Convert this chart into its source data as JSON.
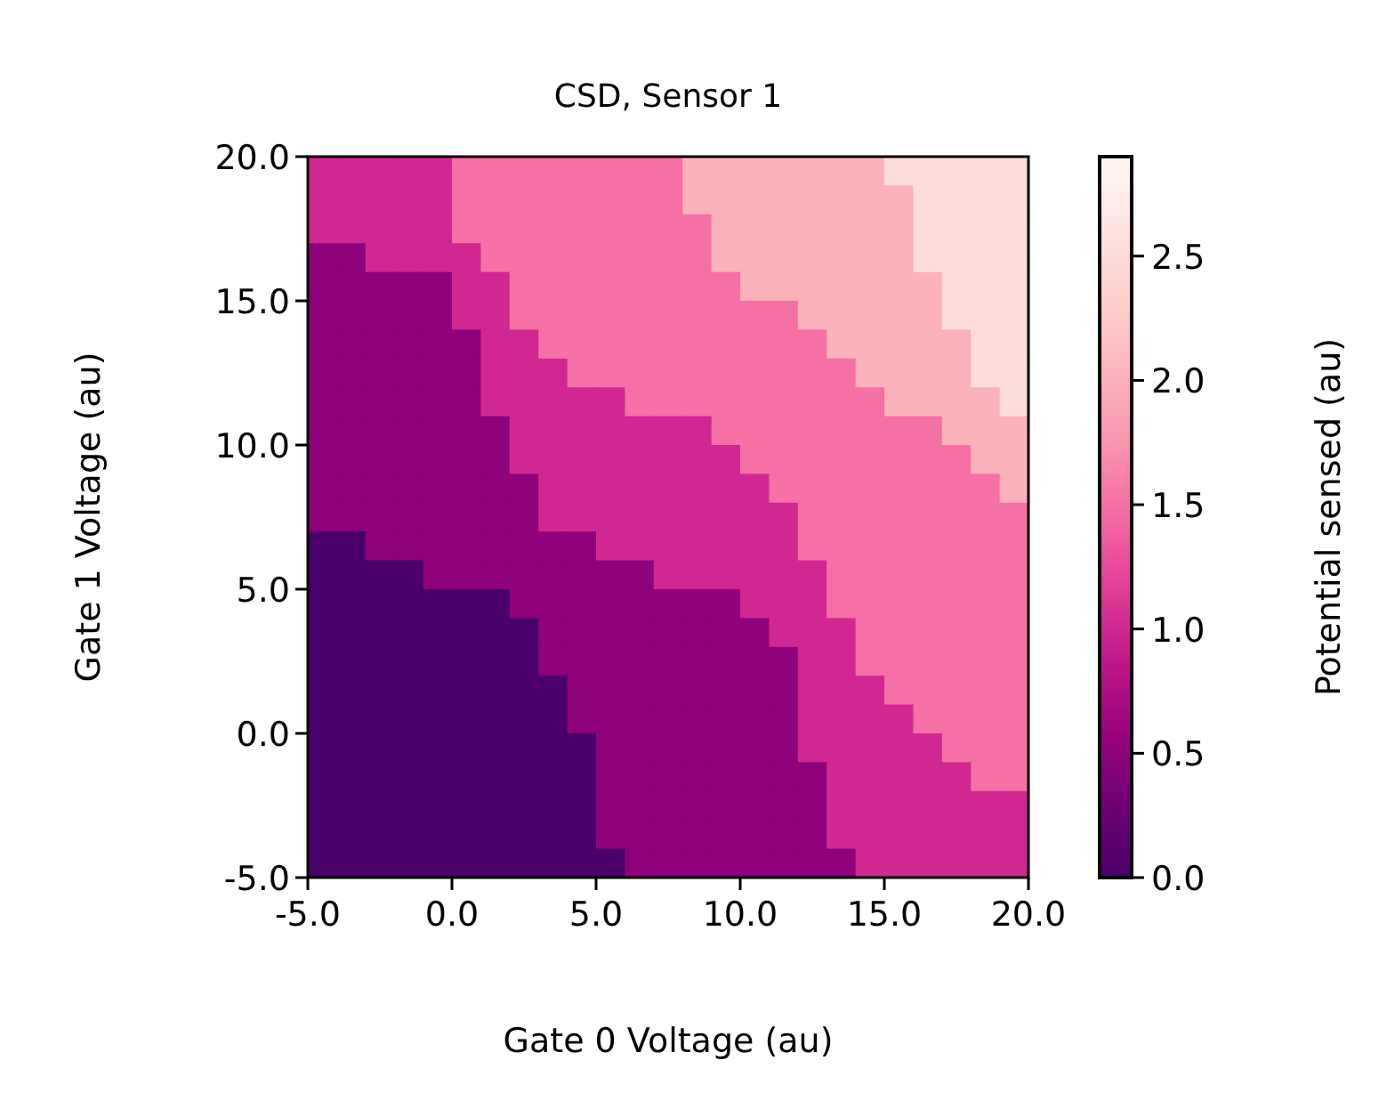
{
  "chart_data": {
    "type": "heatmap",
    "title": "CSD, Sensor 1",
    "xlabel": "Gate 0 Voltage (au)",
    "ylabel": "Gate 1 Voltage (au)",
    "clabel": "Potential sensed (au)",
    "xlim": [
      -5,
      20
    ],
    "ylim": [
      -5,
      20
    ],
    "xticks": [
      {
        "value": -5,
        "label": "-5.0"
      },
      {
        "value": 0,
        "label": "0.0"
      },
      {
        "value": 5,
        "label": "5.0"
      },
      {
        "value": 10,
        "label": "10.0"
      },
      {
        "value": 15,
        "label": "15.0"
      },
      {
        "value": 20,
        "label": "20.0"
      }
    ],
    "yticks": [
      {
        "value": -5,
        "label": "-5.0"
      },
      {
        "value": 0,
        "label": "0.0"
      },
      {
        "value": 5,
        "label": "5.0"
      },
      {
        "value": 10,
        "label": "10.0"
      },
      {
        "value": 15,
        "label": "15.0"
      },
      {
        "value": 20,
        "label": "20.0"
      }
    ],
    "clim": [
      0,
      2.9
    ],
    "cticks": [
      {
        "value": 0,
        "label": "0.0"
      },
      {
        "value": 0.5,
        "label": "0.5"
      },
      {
        "value": 1,
        "label": "1.0"
      },
      {
        "value": 1.5,
        "label": "1.5"
      },
      {
        "value": 2,
        "label": "2.0"
      },
      {
        "value": 2.5,
        "label": "2.5"
      }
    ],
    "cells": [
      [
        1,
        1,
        1,
        1,
        1,
        1.5,
        1.5,
        1.5,
        1.5,
        1.5,
        1.5,
        1.5,
        1.5,
        2,
        2,
        2,
        2,
        2,
        2,
        2,
        2.5,
        2.5,
        2.5,
        2.5,
        2.5
      ],
      [
        1,
        1,
        1,
        1,
        1,
        1.5,
        1.5,
        1.5,
        1.5,
        1.5,
        1.5,
        1.5,
        1.5,
        2,
        2,
        2,
        2,
        2,
        2,
        2,
        2,
        2.5,
        2.5,
        2.5,
        2.5
      ],
      [
        1,
        1,
        1,
        1,
        1,
        1.5,
        1.5,
        1.5,
        1.5,
        1.5,
        1.5,
        1.5,
        1.5,
        1.5,
        2,
        2,
        2,
        2,
        2,
        2,
        2,
        2.5,
        2.5,
        2.5,
        2.5
      ],
      [
        0.5,
        0.5,
        1,
        1,
        1,
        1,
        1.5,
        1.5,
        1.5,
        1.5,
        1.5,
        1.5,
        1.5,
        1.5,
        2,
        2,
        2,
        2,
        2,
        2,
        2,
        2.5,
        2.5,
        2.5,
        2.5
      ],
      [
        0.5,
        0.5,
        0.5,
        0.5,
        0.5,
        1,
        1,
        1.5,
        1.5,
        1.5,
        1.5,
        1.5,
        1.5,
        1.5,
        1.5,
        2,
        2,
        2,
        2,
        2,
        2,
        2,
        2.5,
        2.5,
        2.5
      ],
      [
        0.5,
        0.5,
        0.5,
        0.5,
        0.5,
        1,
        1,
        1.5,
        1.5,
        1.5,
        1.5,
        1.5,
        1.5,
        1.5,
        1.5,
        1.5,
        1.5,
        2,
        2,
        2,
        2,
        2,
        2.5,
        2.5,
        2.5
      ],
      [
        0.5,
        0.5,
        0.5,
        0.5,
        0.5,
        0.5,
        1,
        1,
        1.5,
        1.5,
        1.5,
        1.5,
        1.5,
        1.5,
        1.5,
        1.5,
        1.5,
        1.5,
        2,
        2,
        2,
        2,
        2,
        2.5,
        2.5
      ],
      [
        0.5,
        0.5,
        0.5,
        0.5,
        0.5,
        0.5,
        1,
        1,
        1,
        1.5,
        1.5,
        1.5,
        1.5,
        1.5,
        1.5,
        1.5,
        1.5,
        1.5,
        1.5,
        2,
        2,
        2,
        2,
        2.5,
        2.5
      ],
      [
        0.5,
        0.5,
        0.5,
        0.5,
        0.5,
        0.5,
        1,
        1,
        1,
        1,
        1,
        1.5,
        1.5,
        1.5,
        1.5,
        1.5,
        1.5,
        1.5,
        1.5,
        1.5,
        2,
        2,
        2,
        2,
        2.5
      ],
      [
        0.5,
        0.5,
        0.5,
        0.5,
        0.5,
        0.5,
        0.5,
        1,
        1,
        1,
        1,
        1,
        1,
        1,
        1.5,
        1.5,
        1.5,
        1.5,
        1.5,
        1.5,
        1.5,
        1.5,
        2,
        2,
        2
      ],
      [
        0.5,
        0.5,
        0.5,
        0.5,
        0.5,
        0.5,
        0.5,
        1,
        1,
        1,
        1,
        1,
        1,
        1,
        1,
        1.5,
        1.5,
        1.5,
        1.5,
        1.5,
        1.5,
        1.5,
        1.5,
        2,
        2
      ],
      [
        0.5,
        0.5,
        0.5,
        0.5,
        0.5,
        0.5,
        0.5,
        0.5,
        1,
        1,
        1,
        1,
        1,
        1,
        1,
        1,
        1.5,
        1.5,
        1.5,
        1.5,
        1.5,
        1.5,
        1.5,
        1.5,
        2
      ],
      [
        0.5,
        0.5,
        0.5,
        0.5,
        0.5,
        0.5,
        0.5,
        0.5,
        1,
        1,
        1,
        1,
        1,
        1,
        1,
        1,
        1,
        1.5,
        1.5,
        1.5,
        1.5,
        1.5,
        1.5,
        1.5,
        1.5
      ],
      [
        0,
        0,
        0.5,
        0.5,
        0.5,
        0.5,
        0.5,
        0.5,
        0.5,
        0.5,
        1,
        1,
        1,
        1,
        1,
        1,
        1,
        1.5,
        1.5,
        1.5,
        1.5,
        1.5,
        1.5,
        1.5,
        1.5
      ],
      [
        0,
        0,
        0,
        0,
        0.5,
        0.5,
        0.5,
        0.5,
        0.5,
        0.5,
        0.5,
        0.5,
        1,
        1,
        1,
        1,
        1,
        1,
        1.5,
        1.5,
        1.5,
        1.5,
        1.5,
        1.5,
        1.5
      ],
      [
        0,
        0,
        0,
        0,
        0,
        0,
        0,
        0.5,
        0.5,
        0.5,
        0.5,
        0.5,
        0.5,
        0.5,
        0.5,
        1,
        1,
        1,
        1.5,
        1.5,
        1.5,
        1.5,
        1.5,
        1.5,
        1.5
      ],
      [
        0,
        0,
        0,
        0,
        0,
        0,
        0,
        0,
        0.5,
        0.5,
        0.5,
        0.5,
        0.5,
        0.5,
        0.5,
        0.5,
        1,
        1,
        1,
        1.5,
        1.5,
        1.5,
        1.5,
        1.5,
        1.5
      ],
      [
        0,
        0,
        0,
        0,
        0,
        0,
        0,
        0,
        0.5,
        0.5,
        0.5,
        0.5,
        0.5,
        0.5,
        0.5,
        0.5,
        0.5,
        1,
        1,
        1.5,
        1.5,
        1.5,
        1.5,
        1.5,
        1.5
      ],
      [
        0,
        0,
        0,
        0,
        0,
        0,
        0,
        0,
        0,
        0.5,
        0.5,
        0.5,
        0.5,
        0.5,
        0.5,
        0.5,
        0.5,
        1,
        1,
        1,
        1.5,
        1.5,
        1.5,
        1.5,
        1.5
      ],
      [
        0,
        0,
        0,
        0,
        0,
        0,
        0,
        0,
        0,
        0.5,
        0.5,
        0.5,
        0.5,
        0.5,
        0.5,
        0.5,
        0.5,
        1,
        1,
        1,
        1,
        1.5,
        1.5,
        1.5,
        1.5
      ],
      [
        0,
        0,
        0,
        0,
        0,
        0,
        0,
        0,
        0,
        0,
        0.5,
        0.5,
        0.5,
        0.5,
        0.5,
        0.5,
        0.5,
        1,
        1,
        1,
        1,
        1,
        1.5,
        1.5,
        1.5
      ],
      [
        0,
        0,
        0,
        0,
        0,
        0,
        0,
        0,
        0,
        0,
        0.5,
        0.5,
        0.5,
        0.5,
        0.5,
        0.5,
        0.5,
        0.5,
        1,
        1,
        1,
        1,
        1,
        1.5,
        1.5
      ],
      [
        0,
        0,
        0,
        0,
        0,
        0,
        0,
        0,
        0,
        0,
        0.5,
        0.5,
        0.5,
        0.5,
        0.5,
        0.5,
        0.5,
        0.5,
        1,
        1,
        1,
        1,
        1,
        1,
        1
      ],
      [
        0,
        0,
        0,
        0,
        0,
        0,
        0,
        0,
        0,
        0,
        0.5,
        0.5,
        0.5,
        0.5,
        0.5,
        0.5,
        0.5,
        0.5,
        1,
        1,
        1,
        1,
        1,
        1,
        1
      ],
      [
        0,
        0,
        0,
        0,
        0,
        0,
        0,
        0,
        0,
        0,
        0,
        0.5,
        0.5,
        0.5,
        0.5,
        0.5,
        0.5,
        0.5,
        0.5,
        1,
        1,
        1,
        1,
        1,
        1
      ]
    ]
  }
}
